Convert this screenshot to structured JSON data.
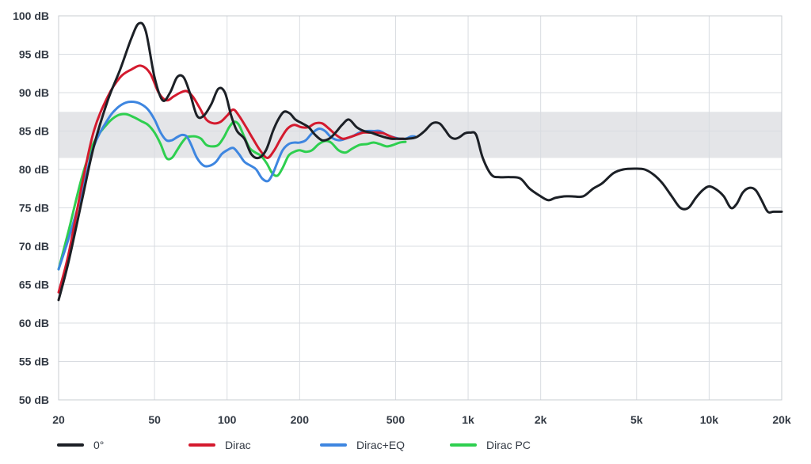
{
  "chart_data": {
    "type": "line",
    "title": "",
    "xlabel": "",
    "ylabel": "",
    "x_scale": "log",
    "xlim": [
      20,
      20000
    ],
    "ylim": [
      50,
      100
    ],
    "grid": true,
    "x_ticks": [
      20,
      50,
      100,
      200,
      500,
      1000,
      2000,
      5000,
      10000,
      20000
    ],
    "x_tick_labels": [
      "20",
      "50",
      "100",
      "200",
      "500",
      "1k",
      "2k",
      "5k",
      "10k",
      "20k"
    ],
    "y_ticks": [
      50,
      55,
      60,
      65,
      70,
      75,
      80,
      85,
      90,
      95,
      100
    ],
    "y_tick_labels": [
      "50 dB",
      "55 dB",
      "60 dB",
      "65 dB",
      "70 dB",
      "75 dB",
      "80 dB",
      "85 dB",
      "90 dB",
      "95 dB",
      "100 dB"
    ],
    "target_band": {
      "y_min": 81.5,
      "y_max": 87.5,
      "color": "#e4e5e8"
    },
    "legend_position": "bottom",
    "series": [
      {
        "name": "0°",
        "color": "#1c2026",
        "x": [
          20,
          22,
          25,
          28,
          32,
          36,
          40,
          43,
          46,
          50,
          54,
          58,
          62,
          66,
          70,
          75,
          80,
          86,
          92,
          98,
          104,
          110,
          118,
          126,
          135,
          145,
          155,
          163,
          172,
          182,
          192,
          205,
          218,
          232,
          248,
          265,
          282,
          300,
          320,
          345,
          370,
          395,
          420,
          450,
          480,
          520,
          560,
          610,
          660,
          710,
          760,
          800,
          840,
          880,
          920,
          970,
          1020,
          1080,
          1150,
          1250,
          1350,
          1500,
          1650,
          1800,
          2000,
          2150,
          2300,
          2500,
          2700,
          3000,
          3300,
          3600,
          4000,
          4400,
          4900,
          5400,
          5900,
          6400,
          7000,
          7600,
          8200,
          8800,
          9400,
          10000,
          10700,
          11500,
          12300,
          13000,
          13800,
          14700,
          15600,
          16500,
          17500,
          18500,
          20000
        ],
        "y": [
          63,
          68,
          76,
          83,
          89,
          93,
          97,
          99,
          98,
          92,
          89,
          90,
          92,
          92,
          90,
          87,
          87,
          88.5,
          90.5,
          90,
          87,
          85,
          84,
          82,
          81.5,
          82.5,
          85,
          86.5,
          87.5,
          87.3,
          86.5,
          86,
          85.5,
          84.5,
          83.8,
          84,
          84.8,
          85.8,
          86.5,
          85.5,
          85,
          84.8,
          84.5,
          84.2,
          84,
          84,
          84,
          84.2,
          85,
          86,
          86,
          85.2,
          84.3,
          84,
          84.2,
          84.7,
          84.8,
          84.5,
          81.5,
          79.3,
          79,
          79,
          78.8,
          77.5,
          76.5,
          76,
          76.3,
          76.5,
          76.5,
          76.5,
          77.5,
          78.2,
          79.5,
          80,
          80.1,
          80,
          79.3,
          78.2,
          76.5,
          75,
          75,
          76.3,
          77.3,
          77.8,
          77.4,
          76.5,
          75,
          75.5,
          77,
          77.6,
          77.3,
          76,
          74.5,
          74.5,
          74.5
        ]
      },
      {
        "name": "Dirac",
        "color": "#d41a2e",
        "x": [
          20,
          22,
          25,
          28,
          32,
          36,
          40,
          44,
          48,
          52,
          56,
          60,
          64,
          68,
          72,
          77,
          82,
          88,
          94,
          100,
          106,
          112,
          120,
          128,
          137,
          147,
          157,
          167,
          178,
          190,
          203,
          217,
          232,
          248,
          265,
          283,
          302,
          322,
          344,
          367,
          392,
          418,
          446,
          476,
          508,
          540
        ],
        "y": [
          64,
          69,
          78,
          85,
          89.5,
          92,
          93,
          93.5,
          92.5,
          90,
          89,
          89.5,
          90,
          90.2,
          89.5,
          88,
          86.5,
          86,
          86.2,
          87,
          87.8,
          87,
          85.5,
          84,
          82.5,
          81.5,
          82.5,
          84,
          85.3,
          85.8,
          85.5,
          85.5,
          86,
          86,
          85.3,
          84.5,
          84,
          84.2,
          84.5,
          84.8,
          84.8,
          84.8,
          84.7,
          84.3,
          84,
          84
        ]
      },
      {
        "name": "Dirac+EQ",
        "color": "#3e86e0",
        "x": [
          20,
          22,
          25,
          28,
          32,
          35,
          38,
          41,
          44,
          47,
          50,
          53,
          56,
          59,
          62,
          65,
          68,
          71,
          75,
          80,
          85,
          90,
          95,
          100,
          106,
          112,
          118,
          125,
          132,
          140,
          148,
          155,
          162,
          170,
          180,
          190,
          200,
          212,
          225,
          240,
          255,
          270,
          290,
          310,
          330,
          355,
          380,
          405,
          430,
          460,
          490,
          520,
          550,
          580,
          600
        ],
        "y": [
          67,
          71,
          77,
          83,
          86.5,
          88,
          88.7,
          88.8,
          88.5,
          87.8,
          86.5,
          84.8,
          83.8,
          83.8,
          84.2,
          84.5,
          84.3,
          83.2,
          81.5,
          80.5,
          80.5,
          81,
          82,
          82.5,
          82.8,
          82,
          81,
          80.5,
          80,
          78.8,
          78.5,
          79.5,
          81,
          82.5,
          83.3,
          83.5,
          83.5,
          83.8,
          84.7,
          85.3,
          85,
          84.2,
          83.8,
          84,
          84.3,
          84.8,
          85,
          85,
          85,
          84.5,
          84.2,
          84,
          84,
          84.3,
          84.3
        ]
      },
      {
        "name": "Dirac PC",
        "color": "#2ecf4f",
        "x": [
          20,
          22,
          25,
          28,
          32,
          35,
          38,
          41,
          44,
          47,
          50,
          53,
          56,
          59,
          62,
          65,
          68,
          71,
          74,
          78,
          82,
          87,
          92,
          97,
          102,
          107,
          112,
          118,
          124,
          131,
          138,
          146,
          154,
          162,
          170,
          180,
          190,
          200,
          212,
          225,
          240,
          255,
          270,
          290,
          310,
          330,
          355,
          380,
          405,
          430,
          460,
          490,
          520,
          550
        ],
        "y": [
          67,
          72,
          79,
          83.5,
          86,
          87,
          87.2,
          86.8,
          86.3,
          85.8,
          84.8,
          83.3,
          81.5,
          81.5,
          82.5,
          83.5,
          84.2,
          84.3,
          84.3,
          84,
          83.2,
          83,
          83.2,
          84.2,
          85.5,
          86.2,
          85.8,
          84.2,
          82.8,
          82.2,
          81.8,
          80.8,
          79.5,
          79.2,
          80.2,
          81.8,
          82.3,
          82.5,
          82.3,
          82.5,
          83.3,
          83.7,
          83.5,
          82.5,
          82.2,
          82.7,
          83.2,
          83.3,
          83.5,
          83.3,
          83,
          83.2,
          83.5,
          83.6
        ]
      }
    ]
  }
}
